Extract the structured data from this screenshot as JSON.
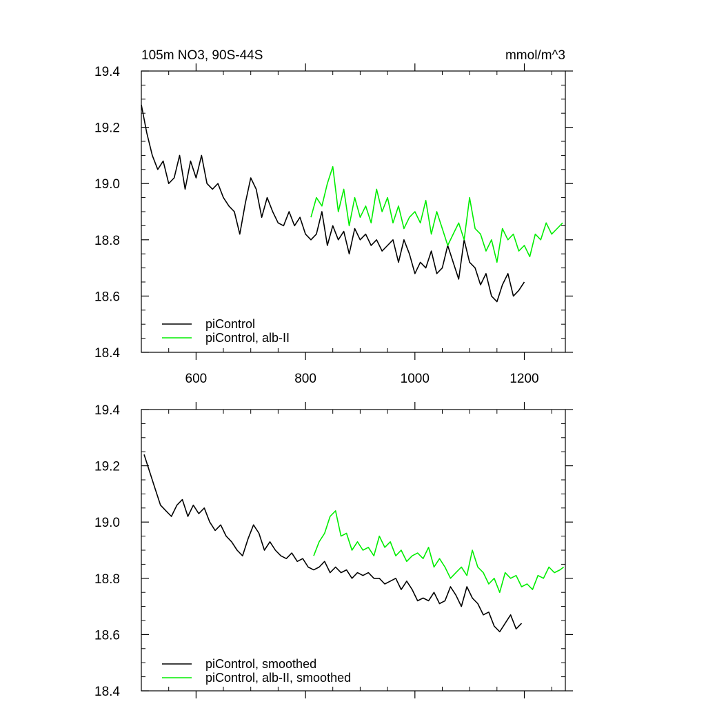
{
  "chart_data": [
    {
      "type": "line",
      "title": "105m NO3, 90S-44S",
      "units": "mmol/m^3",
      "xlim": [
        500,
        1275
      ],
      "ylim": [
        18.4,
        19.4
      ],
      "xticks": [
        600,
        800,
        1000,
        1200
      ],
      "xtick_labels": [
        "600",
        "800",
        "1000",
        "1200"
      ],
      "yticks": [
        18.4,
        18.6,
        18.8,
        19.0,
        19.2,
        19.4
      ],
      "ytick_labels": [
        "18.4",
        "18.6",
        "18.8",
        "19.0",
        "19.2",
        "19.4"
      ],
      "legend_position": "bottom-left",
      "series": [
        {
          "name": "piControl",
          "color": "#000000",
          "x": [
            500,
            510,
            520,
            530,
            540,
            550,
            560,
            570,
            580,
            590,
            600,
            610,
            620,
            630,
            640,
            650,
            660,
            670,
            680,
            690,
            700,
            710,
            720,
            730,
            740,
            750,
            760,
            770,
            780,
            790,
            800,
            810,
            820,
            830,
            840,
            850,
            860,
            870,
            880,
            890,
            900,
            910,
            920,
            930,
            940,
            950,
            960,
            970,
            980,
            990,
            1000,
            1010,
            1020,
            1030,
            1040,
            1050,
            1060,
            1070,
            1080,
            1090,
            1100,
            1110,
            1120,
            1130,
            1140,
            1150,
            1160,
            1170,
            1180,
            1190,
            1200
          ],
          "values": [
            19.28,
            19.18,
            19.1,
            19.05,
            19.08,
            19.0,
            19.02,
            19.1,
            18.98,
            19.08,
            19.02,
            19.1,
            19.0,
            18.98,
            19.0,
            18.95,
            18.92,
            18.9,
            18.82,
            18.93,
            19.02,
            18.98,
            18.88,
            18.95,
            18.9,
            18.86,
            18.85,
            18.9,
            18.85,
            18.88,
            18.82,
            18.8,
            18.82,
            18.9,
            18.78,
            18.85,
            18.8,
            18.83,
            18.75,
            18.84,
            18.8,
            18.82,
            18.78,
            18.8,
            18.76,
            18.78,
            18.8,
            18.72,
            18.8,
            18.75,
            18.68,
            18.72,
            18.7,
            18.76,
            18.68,
            18.7,
            18.78,
            18.72,
            18.66,
            18.8,
            18.72,
            18.7,
            18.64,
            18.68,
            18.6,
            18.58,
            18.64,
            18.68,
            18.6,
            18.62,
            18.65
          ]
        },
        {
          "name": "piControl, alb-II",
          "color": "#00ee00",
          "x": [
            810,
            820,
            830,
            840,
            850,
            860,
            870,
            880,
            890,
            900,
            910,
            920,
            930,
            940,
            950,
            960,
            970,
            980,
            990,
            1000,
            1010,
            1020,
            1030,
            1040,
            1050,
            1060,
            1070,
            1080,
            1090,
            1100,
            1110,
            1120,
            1130,
            1140,
            1150,
            1160,
            1170,
            1180,
            1190,
            1200,
            1210,
            1220,
            1230,
            1240,
            1250,
            1260,
            1270
          ],
          "values": [
            18.88,
            18.95,
            18.92,
            19.0,
            19.06,
            18.9,
            18.98,
            18.85,
            18.95,
            18.88,
            18.92,
            18.86,
            18.98,
            18.9,
            18.95,
            18.86,
            18.92,
            18.84,
            18.88,
            18.9,
            18.86,
            18.94,
            18.82,
            18.9,
            18.84,
            18.78,
            18.82,
            18.86,
            18.8,
            18.95,
            18.84,
            18.82,
            18.76,
            18.8,
            18.72,
            18.84,
            18.8,
            18.82,
            18.76,
            18.78,
            18.74,
            18.82,
            18.8,
            18.86,
            18.82,
            18.84,
            18.86
          ]
        }
      ]
    },
    {
      "type": "line",
      "title": "",
      "xlim": [
        500,
        1275
      ],
      "ylim": [
        18.4,
        19.4
      ],
      "xticks": [
        600,
        800,
        1000,
        1200
      ],
      "yticks": [
        18.4,
        18.6,
        18.8,
        19.0,
        19.2,
        19.4
      ],
      "ytick_labels": [
        "18.4",
        "18.6",
        "18.8",
        "19.0",
        "19.2",
        "19.4"
      ],
      "legend_position": "bottom-left",
      "series": [
        {
          "name": "piControl, smoothed",
          "color": "#000000",
          "x": [
            505,
            515,
            525,
            535,
            545,
            555,
            565,
            575,
            585,
            595,
            605,
            615,
            625,
            635,
            645,
            655,
            665,
            675,
            685,
            695,
            705,
            715,
            725,
            735,
            745,
            755,
            765,
            775,
            785,
            795,
            805,
            815,
            825,
            835,
            845,
            855,
            865,
            875,
            885,
            895,
            905,
            915,
            925,
            935,
            945,
            955,
            965,
            975,
            985,
            995,
            1005,
            1015,
            1025,
            1035,
            1045,
            1055,
            1065,
            1075,
            1085,
            1095,
            1105,
            1115,
            1125,
            1135,
            1145,
            1155,
            1165,
            1175,
            1185,
            1195
          ],
          "values": [
            19.24,
            19.18,
            19.12,
            19.06,
            19.04,
            19.02,
            19.06,
            19.08,
            19.02,
            19.06,
            19.03,
            19.05,
            19.0,
            18.97,
            18.99,
            18.95,
            18.93,
            18.9,
            18.88,
            18.94,
            18.99,
            18.96,
            18.9,
            18.93,
            18.9,
            18.88,
            18.87,
            18.89,
            18.86,
            18.87,
            18.84,
            18.83,
            18.84,
            18.86,
            18.82,
            18.84,
            18.82,
            18.83,
            18.8,
            18.82,
            18.81,
            18.82,
            18.8,
            18.8,
            18.78,
            18.79,
            18.8,
            18.76,
            18.79,
            18.76,
            18.72,
            18.73,
            18.72,
            18.75,
            18.71,
            18.72,
            18.77,
            18.74,
            18.7,
            18.77,
            18.73,
            18.71,
            18.67,
            18.68,
            18.63,
            18.61,
            18.64,
            18.67,
            18.62,
            18.64
          ]
        },
        {
          "name": "piControl, alb-II, smoothed",
          "color": "#00ee00",
          "x": [
            815,
            825,
            835,
            845,
            855,
            865,
            875,
            885,
            895,
            905,
            915,
            925,
            935,
            945,
            955,
            965,
            975,
            985,
            995,
            1005,
            1015,
            1025,
            1035,
            1045,
            1055,
            1065,
            1075,
            1085,
            1095,
            1105,
            1115,
            1125,
            1135,
            1145,
            1155,
            1165,
            1175,
            1185,
            1195,
            1205,
            1215,
            1225,
            1235,
            1245,
            1255,
            1265,
            1272
          ],
          "values": [
            18.88,
            18.93,
            18.96,
            19.02,
            19.04,
            18.95,
            18.96,
            18.9,
            18.93,
            18.9,
            18.91,
            18.88,
            18.95,
            18.91,
            18.93,
            18.88,
            18.9,
            18.86,
            18.88,
            18.89,
            18.87,
            18.91,
            18.84,
            18.87,
            18.84,
            18.8,
            18.82,
            18.84,
            18.81,
            18.9,
            18.84,
            18.82,
            18.78,
            18.8,
            18.75,
            18.82,
            18.8,
            18.81,
            18.77,
            18.78,
            18.76,
            18.81,
            18.8,
            18.84,
            18.82,
            18.83,
            18.84
          ]
        }
      ]
    }
  ]
}
